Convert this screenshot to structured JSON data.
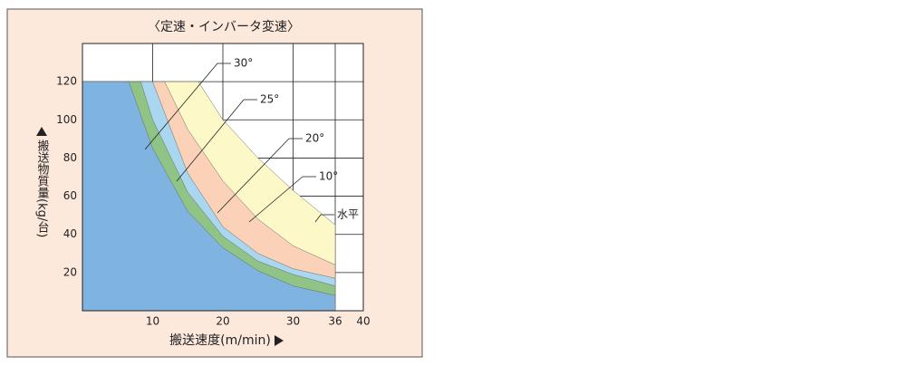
{
  "chart_data": {
    "type": "area",
    "title": "〈定速・インバータ変速〉",
    "x_label": "搬送速度(m/min)",
    "y_label": "搬送物質量(kg/台)",
    "xlim": [
      0,
      40
    ],
    "xticks": [
      10,
      20,
      30,
      36,
      40
    ],
    "ylim": [
      0,
      140
    ],
    "yticks": [
      20,
      40,
      60,
      80,
      100,
      120
    ],
    "grid": true,
    "series": [
      {
        "name": "30°",
        "color": "#7fb3e0",
        "x": [
          0,
          6.6,
          10,
          15,
          20,
          25,
          30,
          36
        ],
        "values": [
          120,
          120,
          85,
          52,
          33,
          21,
          13,
          8
        ]
      },
      {
        "name": "25°",
        "color": "#8fc486",
        "x": [
          0,
          8.3,
          10,
          15,
          20,
          25,
          30,
          36
        ],
        "values": [
          120,
          120,
          100,
          62,
          39,
          26,
          19,
          13
        ]
      },
      {
        "name": "20°",
        "color": "#aad6f0",
        "x": [
          0,
          10,
          15,
          20,
          25,
          30,
          36
        ],
        "values": [
          120,
          120,
          72,
          44,
          30,
          22,
          17
        ]
      },
      {
        "name": "10°",
        "color": "#fbd2b8",
        "x": [
          0,
          11.7,
          15,
          20,
          25,
          30,
          36
        ],
        "values": [
          120,
          120,
          95,
          68,
          48,
          34,
          24
        ]
      },
      {
        "name": "水平",
        "color": "#fdf8c8",
        "x": [
          0,
          16.5,
          20,
          25,
          30,
          36
        ],
        "values": [
          120,
          120,
          100,
          80,
          63,
          45
        ]
      }
    ]
  }
}
